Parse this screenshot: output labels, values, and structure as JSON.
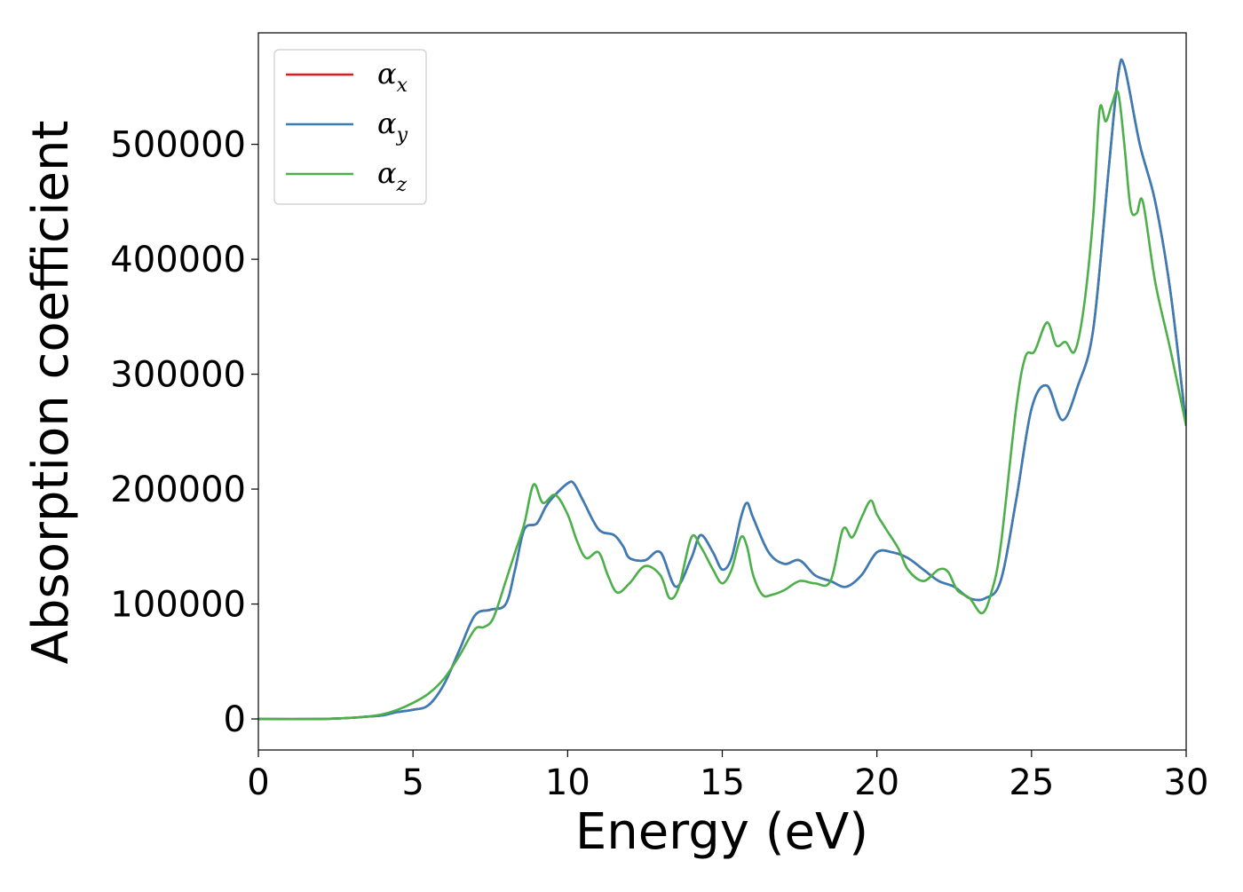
{
  "chart_data": {
    "type": "line",
    "xlabel": "Energy (eV)",
    "ylabel": "Absorption coefficient",
    "xlim": [
      0,
      30
    ],
    "ylim": [
      -27000,
      597000
    ],
    "xticks": [
      0,
      5,
      10,
      15,
      20,
      25,
      30
    ],
    "xtick_labels": [
      "0",
      "5",
      "10",
      "15",
      "20",
      "25",
      "30"
    ],
    "yticks": [
      0,
      100000,
      200000,
      300000,
      400000,
      500000
    ],
    "ytick_labels": [
      "0",
      "100000",
      "200000",
      "300000",
      "400000",
      "500000"
    ],
    "grid": false,
    "legend_position": "top-left",
    "series": [
      {
        "name": "α",
        "subscript": "x",
        "color": "#e41a1c",
        "x": [
          0,
          2,
          3,
          3.5,
          4,
          4.5,
          5,
          5.5,
          6,
          6.5,
          7,
          7.5,
          8,
          8.3,
          8.6,
          9,
          9.3,
          9.6,
          10,
          10.2,
          10.5,
          11,
          11.5,
          11.8,
          12,
          12.5,
          13,
          13.5,
          14,
          14.3,
          14.7,
          15,
          15.3,
          15.6,
          15.8,
          16,
          16.5,
          17,
          17.5,
          18,
          18.5,
          19,
          19.5,
          20,
          20.5,
          21,
          21.5,
          22,
          22.5,
          23,
          23.5,
          24,
          24.5,
          25,
          25.5,
          26,
          26.5,
          27,
          27.5,
          27.8,
          28,
          28.5,
          29,
          29.5,
          30
        ],
        "y": [
          0,
          0,
          1000,
          2000,
          3000,
          6000,
          8000,
          12000,
          30000,
          60000,
          90000,
          95000,
          100000,
          130000,
          165000,
          170000,
          185000,
          195000,
          205000,
          205000,
          190000,
          165000,
          160000,
          150000,
          140000,
          138000,
          145000,
          115000,
          140000,
          160000,
          145000,
          130000,
          140000,
          175000,
          188000,
          175000,
          145000,
          135000,
          138000,
          125000,
          120000,
          115000,
          125000,
          145000,
          145000,
          140000,
          130000,
          120000,
          115000,
          105000,
          105000,
          120000,
          190000,
          270000,
          290000,
          260000,
          290000,
          340000,
          480000,
          560000,
          568000,
          500000,
          450000,
          370000,
          255000
        ]
      },
      {
        "name": "α",
        "subscript": "y",
        "color": "#377eb8",
        "x": [
          0,
          2,
          3,
          3.5,
          4,
          4.5,
          5,
          5.5,
          6,
          6.5,
          7,
          7.5,
          8,
          8.3,
          8.6,
          9,
          9.3,
          9.6,
          10,
          10.2,
          10.5,
          11,
          11.5,
          11.8,
          12,
          12.5,
          13,
          13.5,
          14,
          14.3,
          14.7,
          15,
          15.3,
          15.6,
          15.8,
          16,
          16.5,
          17,
          17.5,
          18,
          18.5,
          19,
          19.5,
          20,
          20.5,
          21,
          21.5,
          22,
          22.5,
          23,
          23.5,
          24,
          24.5,
          25,
          25.5,
          26,
          26.5,
          27,
          27.5,
          27.8,
          28,
          28.5,
          29,
          29.5,
          30
        ],
        "y": [
          0,
          0,
          1000,
          2000,
          3000,
          6000,
          8000,
          12000,
          30000,
          60000,
          90000,
          95000,
          100000,
          130000,
          165000,
          170000,
          185000,
          195000,
          205000,
          205000,
          190000,
          165000,
          160000,
          150000,
          140000,
          138000,
          145000,
          115000,
          140000,
          160000,
          145000,
          130000,
          140000,
          175000,
          188000,
          175000,
          145000,
          135000,
          138000,
          125000,
          120000,
          115000,
          125000,
          145000,
          145000,
          140000,
          130000,
          120000,
          115000,
          105000,
          105000,
          120000,
          190000,
          270000,
          290000,
          260000,
          290000,
          340000,
          480000,
          560000,
          568000,
          500000,
          450000,
          370000,
          255000
        ]
      },
      {
        "name": "α",
        "subscript": "z",
        "color": "#4daf4a",
        "x": [
          0,
          2,
          3,
          3.5,
          4,
          4.5,
          5,
          5.5,
          6,
          6.5,
          7,
          7.3,
          7.6,
          8,
          8.3,
          8.6,
          8.9,
          9.2,
          9.6,
          10,
          10.3,
          10.6,
          11,
          11.3,
          11.6,
          12,
          12.5,
          13,
          13.3,
          13.6,
          14,
          14.3,
          14.7,
          15,
          15.3,
          15.6,
          15.8,
          16,
          16.3,
          16.6,
          17,
          17.5,
          18,
          18.5,
          18.9,
          19.2,
          19.5,
          19.8,
          20,
          20.3,
          20.7,
          21,
          21.5,
          22,
          22.3,
          22.6,
          23,
          23.4,
          23.7,
          24,
          24.5,
          24.8,
          25.1,
          25.5,
          25.8,
          26.1,
          26.4,
          26.7,
          27,
          27.2,
          27.4,
          27.6,
          27.8,
          28,
          28.2,
          28.4,
          28.6,
          29,
          29.5,
          30
        ],
        "y": [
          0,
          0,
          1000,
          2000,
          4000,
          8000,
          14000,
          22000,
          35000,
          55000,
          78000,
          80000,
          88000,
          120000,
          145000,
          170000,
          204000,
          188000,
          195000,
          178000,
          155000,
          140000,
          145000,
          125000,
          110000,
          118000,
          133000,
          125000,
          105000,
          115000,
          158000,
          150000,
          130000,
          118000,
          130000,
          158000,
          150000,
          125000,
          108000,
          108000,
          112000,
          120000,
          118000,
          120000,
          165000,
          158000,
          175000,
          190000,
          178000,
          165000,
          148000,
          130000,
          120000,
          130000,
          128000,
          112000,
          105000,
          92000,
          110000,
          150000,
          270000,
          315000,
          320000,
          345000,
          325000,
          328000,
          320000,
          360000,
          440000,
          530000,
          520000,
          535000,
          545000,
          500000,
          445000,
          440000,
          450000,
          380000,
          320000,
          255000
        ]
      }
    ]
  }
}
